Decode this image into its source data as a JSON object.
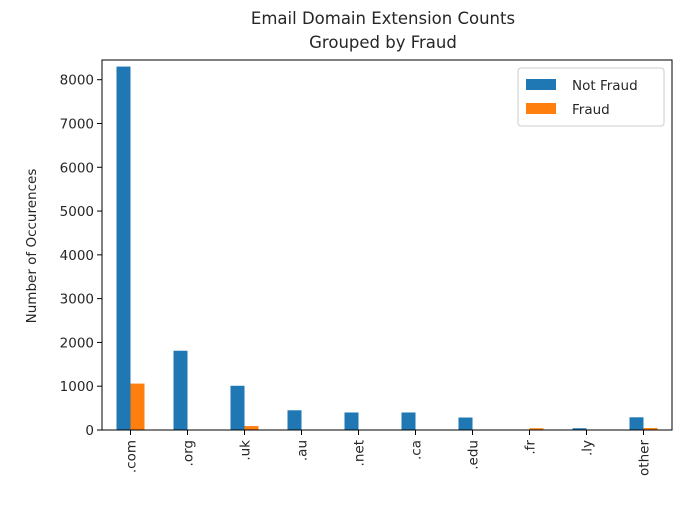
{
  "chart_data": {
    "type": "bar",
    "title": "Email Domain Extension Counts",
    "subtitle": "Grouped by Fraud",
    "xlabel": "",
    "ylabel": "Number of Occurences",
    "ylim": [
      0,
      8450
    ],
    "yticks": [
      0,
      1000,
      2000,
      3000,
      4000,
      5000,
      6000,
      7000,
      8000
    ],
    "grid": false,
    "legend_position": "top-right",
    "categories": [
      ".com",
      ".org",
      ".uk",
      ".au",
      ".net",
      ".ca",
      ".edu",
      ".fr",
      ".ly",
      "other"
    ],
    "series": [
      {
        "name": "Not Fraud",
        "color": "#1f77b4",
        "values": [
          8300,
          1810,
          1010,
          450,
          400,
          400,
          285,
          0,
          40,
          290
        ]
      },
      {
        "name": "Fraud",
        "color": "#ff7f0e",
        "values": [
          1060,
          0,
          90,
          0,
          0,
          0,
          0,
          40,
          0,
          45
        ]
      }
    ]
  }
}
